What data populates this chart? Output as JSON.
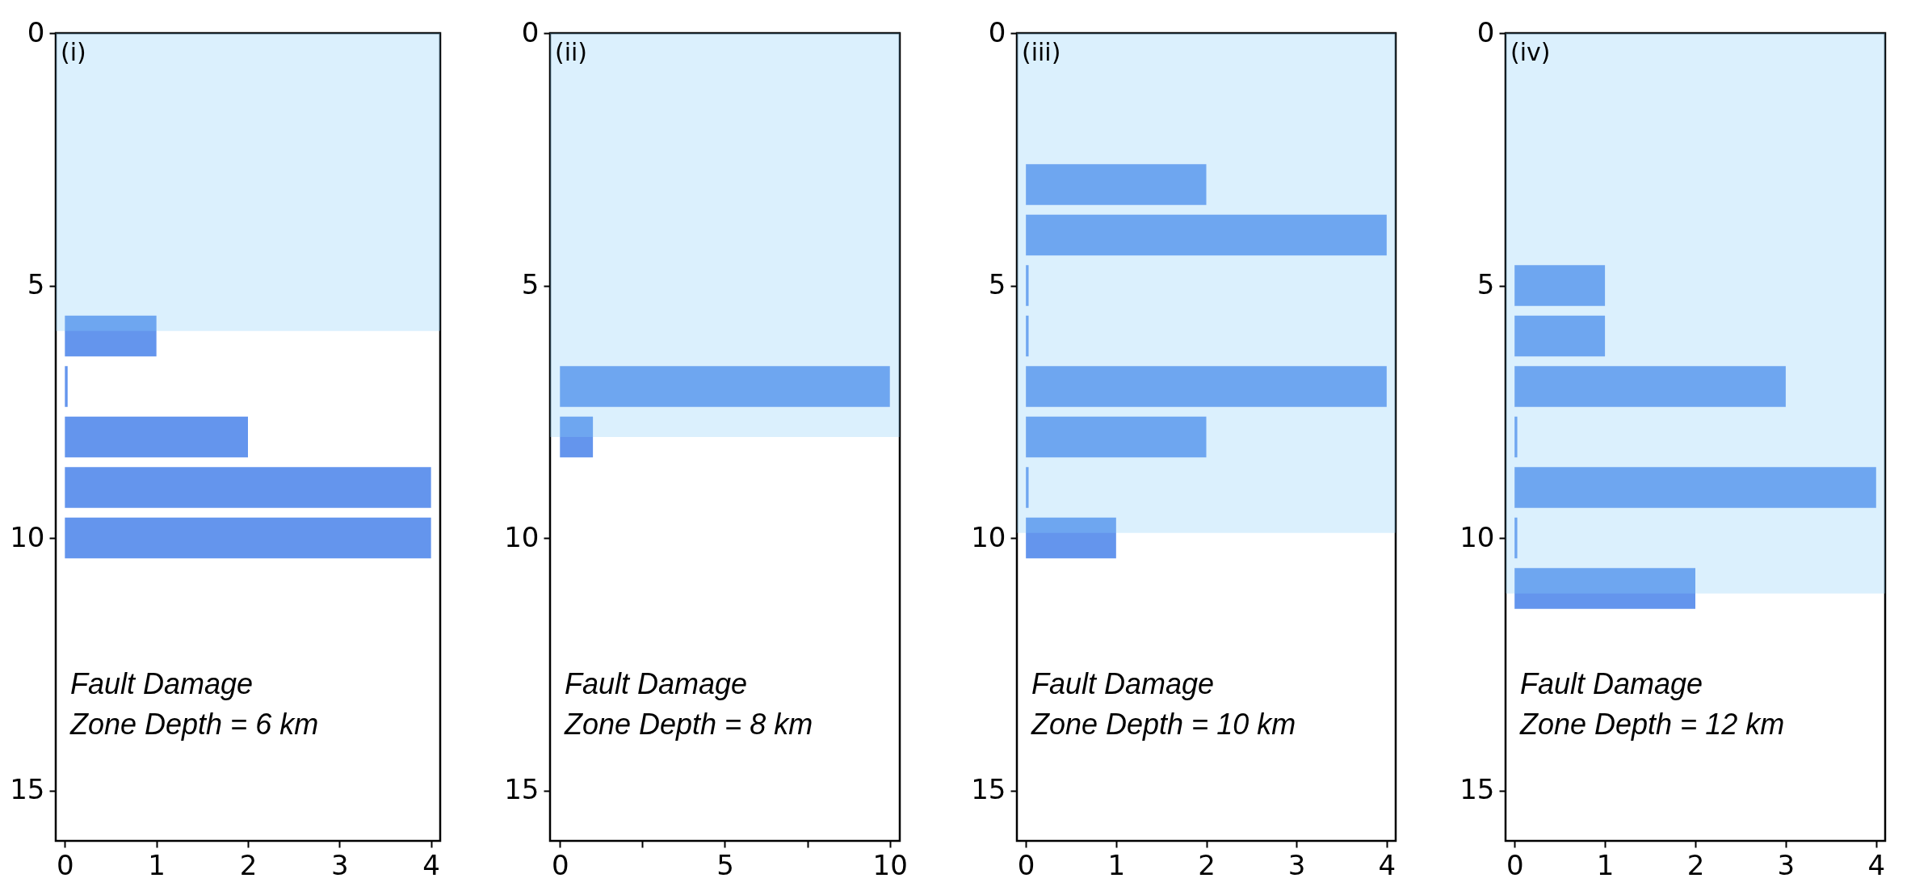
{
  "chart_data": [
    {
      "type": "histogram",
      "orientation": "horizontal",
      "color": "#6495ed",
      "bins": [
        5.5,
        6.5,
        7.5,
        8.5,
        9.5,
        10.5
      ],
      "values": [
        1,
        0.03,
        2,
        4,
        4
      ],
      "xlim": [
        -0.1,
        4.1
      ],
      "xticks": [
        0,
        1,
        2,
        3,
        4
      ],
      "ylim": [
        16,
        0
      ],
      "yticks": [
        0,
        5,
        10,
        15
      ],
      "bands": [
        {
          "axis": "y",
          "from": 0,
          "to": 5.9,
          "color": "#87cefa"
        }
      ],
      "annotations": [
        "(i)",
        "Fault Damage\nZone Depth = 6 km"
      ]
    },
    {
      "type": "histogram",
      "orientation": "horizontal",
      "color": "#6495ed",
      "bins": [
        6.5,
        7.5,
        8.5
      ],
      "values": [
        10,
        1
      ],
      "xlim": [
        -0.3,
        10.3
      ],
      "xticks": [
        0,
        {
          "value": 2.5,
          "label": null
        },
        5,
        {
          "value": 7.5,
          "label": null
        },
        10
      ],
      "ylim": [
        16,
        0
      ],
      "yticks": [
        0,
        5,
        10,
        15
      ],
      "bands": [
        {
          "axis": "y",
          "from": 0,
          "to": 8,
          "color": "#87cefa"
        }
      ],
      "annotations": [
        "(ii)",
        "Fault Damage\nZone Depth = 8 km"
      ]
    },
    {
      "type": "histogram",
      "orientation": "horizontal",
      "color": "#6495ed",
      "bins": [
        2.5,
        3.5,
        4.5,
        5.5,
        6.5,
        7.5,
        8.5,
        9.5,
        10.5
      ],
      "values": [
        2,
        4,
        0.03,
        0.03,
        4,
        2,
        0.03,
        1
      ],
      "xlim": [
        -0.1,
        4.1
      ],
      "xticks": [
        0,
        1,
        2,
        3,
        4
      ],
      "ylim": [
        16,
        0
      ],
      "yticks": [
        0,
        5,
        10,
        15
      ],
      "bands": [
        {
          "axis": "y",
          "from": 0,
          "to": 9.9,
          "color": "#87cefa"
        }
      ],
      "annotations": [
        "(iii)",
        "Fault Damage\nZone Depth = 10 km"
      ]
    },
    {
      "type": "histogram",
      "orientation": "horizontal",
      "color": "#6495ed",
      "bins": [
        4.5,
        5.5,
        6.5,
        7.5,
        8.5,
        9.5,
        10.5,
        11.5
      ],
      "values": [
        1,
        1,
        3,
        0.03,
        4,
        0.03,
        2
      ],
      "xlim": [
        -0.1,
        4.1
      ],
      "xticks": [
        0,
        1,
        2,
        3,
        4
      ],
      "ylim": [
        16,
        0
      ],
      "yticks": [
        0,
        5,
        10,
        15
      ],
      "bands": [
        {
          "axis": "y",
          "from": 0,
          "to": 11.1,
          "color": "#87cefa"
        }
      ],
      "annotations": [
        "(iv)",
        "Fault Damage\nZone Depth = 12 km"
      ]
    }
  ]
}
